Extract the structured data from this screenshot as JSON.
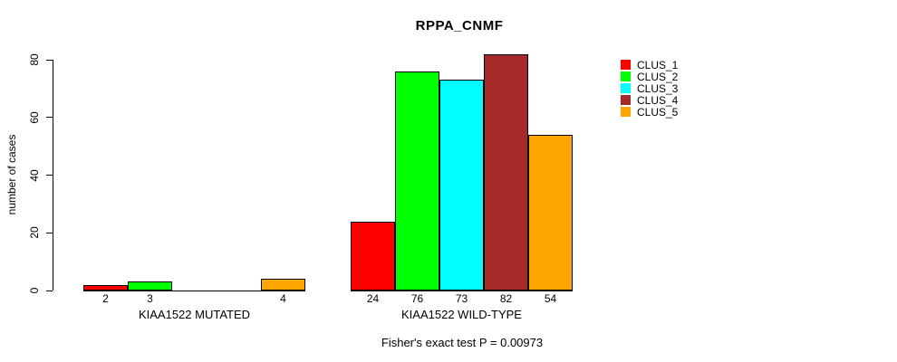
{
  "chart_data": {
    "type": "bar",
    "title": "RPPA_CNMF",
    "ylabel": "number of cases",
    "xlabel": "",
    "ylim": [
      0,
      82
    ],
    "yticks": [
      0,
      20,
      40,
      60,
      80
    ],
    "grid": false,
    "legend_position": "right",
    "categories": [
      "KIAA1522 MUTATED",
      "KIAA1522 WILD-TYPE"
    ],
    "series": [
      {
        "name": "CLUS_1",
        "color": "#FF0000",
        "values": [
          2,
          24
        ]
      },
      {
        "name": "CLUS_2",
        "color": "#00FF00",
        "values": [
          3,
          76
        ]
      },
      {
        "name": "CLUS_3",
        "color": "#00FFFF",
        "values": [
          0,
          73
        ]
      },
      {
        "name": "CLUS_4",
        "color": "#A52A2A",
        "values": [
          0,
          82
        ]
      },
      {
        "name": "CLUS_5",
        "color": "#FFA500",
        "values": [
          4,
          54
        ]
      }
    ],
    "bar_value_labels": [
      [
        "2",
        "3",
        "",
        "",
        "4"
      ],
      [
        "24",
        "76",
        "73",
        "82",
        "54"
      ]
    ],
    "annotation": "Fisher's exact test P = 0.00973"
  },
  "colors": {
    "background": "#FFFFFF",
    "axis": "#000000",
    "text": "#000000"
  }
}
